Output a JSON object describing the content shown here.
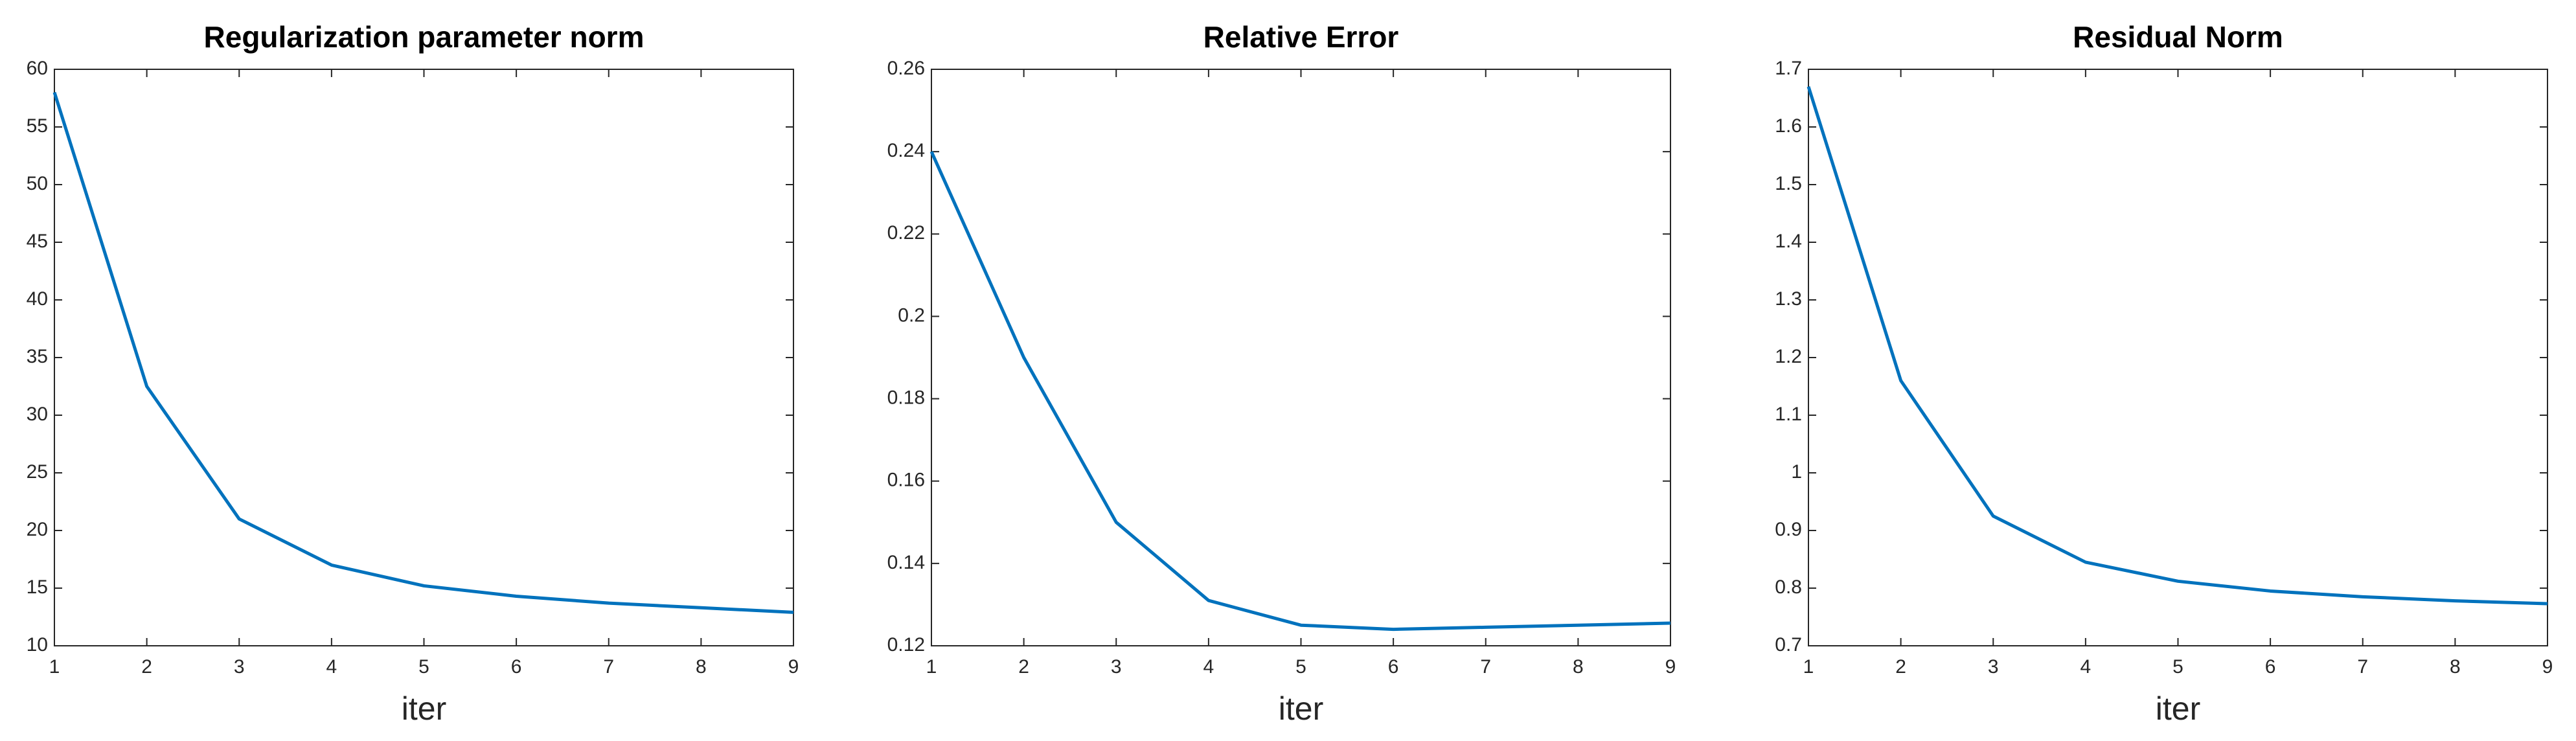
{
  "chart_data": [
    {
      "type": "line",
      "title": "Regularization parameter norm",
      "xlabel": "iter",
      "x": [
        1,
        2,
        3,
        4,
        5,
        6,
        7,
        8,
        9
      ],
      "series": [
        {
          "color": "#0072bd",
          "values": [
            58,
            32.5,
            21,
            17,
            15.2,
            14.3,
            13.7,
            13.3,
            12.9
          ]
        }
      ],
      "xlim": [
        1,
        9
      ],
      "xticks": [
        1,
        2,
        3,
        4,
        5,
        6,
        7,
        8,
        9
      ],
      "ylim": [
        10,
        60
      ],
      "yticks": [
        10,
        15,
        20,
        25,
        30,
        35,
        40,
        45,
        50,
        55,
        60
      ],
      "grid": false
    },
    {
      "type": "line",
      "title": "Relative Error",
      "xlabel": "iter",
      "x": [
        1,
        2,
        3,
        4,
        5,
        6,
        7,
        8,
        9
      ],
      "series": [
        {
          "color": "#0072bd",
          "values": [
            0.24,
            0.19,
            0.15,
            0.131,
            0.125,
            0.124,
            0.1245,
            0.125,
            0.1255
          ]
        }
      ],
      "xlim": [
        1,
        9
      ],
      "xticks": [
        1,
        2,
        3,
        4,
        5,
        6,
        7,
        8,
        9
      ],
      "ylim": [
        0.12,
        0.26
      ],
      "yticks": [
        0.12,
        0.14,
        0.16,
        0.18,
        0.2,
        0.22,
        0.24,
        0.26
      ],
      "grid": false
    },
    {
      "type": "line",
      "title": "Residual Norm",
      "xlabel": "iter",
      "x": [
        1,
        2,
        3,
        4,
        5,
        6,
        7,
        8,
        9
      ],
      "series": [
        {
          "color": "#0072bd",
          "values": [
            1.67,
            1.16,
            0.925,
            0.845,
            0.812,
            0.795,
            0.785,
            0.778,
            0.773
          ]
        }
      ],
      "xlim": [
        1,
        9
      ],
      "xticks": [
        1,
        2,
        3,
        4,
        5,
        6,
        7,
        8,
        9
      ],
      "ylim": [
        0.7,
        1.7
      ],
      "yticks": [
        0.7,
        0.8,
        0.9,
        1,
        1.1,
        1.2,
        1.3,
        1.4,
        1.5,
        1.6,
        1.7
      ],
      "grid": false
    }
  ]
}
